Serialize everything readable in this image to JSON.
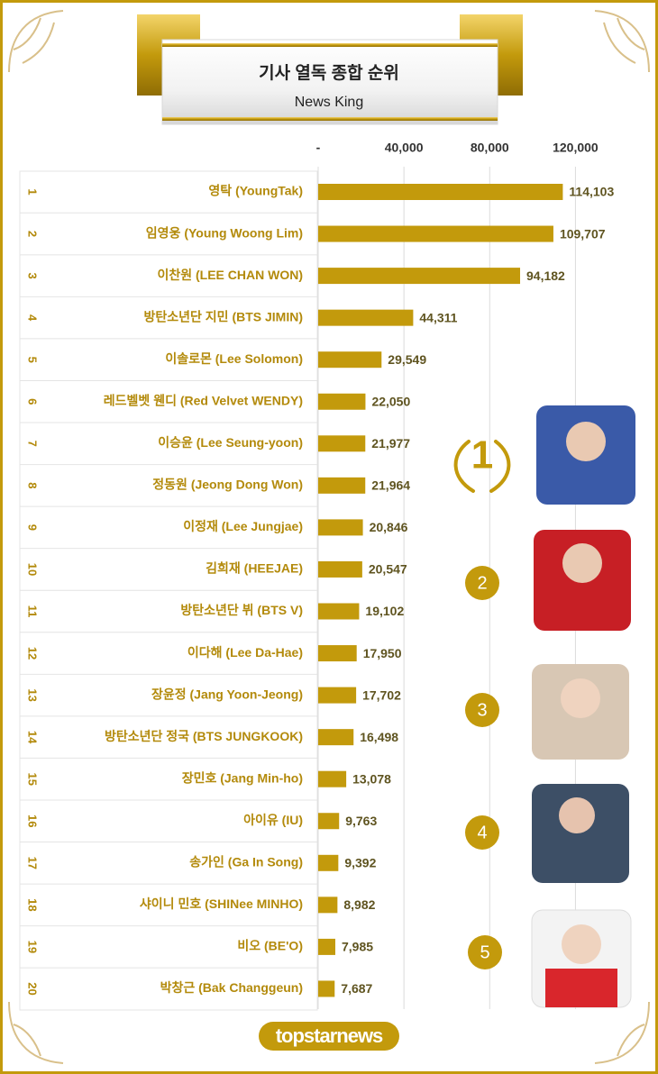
{
  "chart_data": {
    "type": "bar",
    "orientation": "horizontal",
    "title": "기사 열독 종합 순위",
    "subtitle": "News King",
    "ranks": [
      "1",
      "2",
      "3",
      "4",
      "5",
      "6",
      "7",
      "8",
      "9",
      "10",
      "11",
      "12",
      "13",
      "14",
      "15",
      "16",
      "17",
      "18",
      "19",
      "20"
    ],
    "categories": [
      "영탁 (YoungTak)",
      "임영웅 (Young Woong Lim)",
      "이찬원 (LEE CHAN WON)",
      "방탄소년단 지민 (BTS JIMIN)",
      "이솔로몬 (Lee Solomon)",
      "레드벨벳 웬디 (Red Velvet WENDY)",
      "이승윤 (Lee Seung-yoon)",
      "정동원 (Jeong Dong Won)",
      "이정재 (Lee Jungjae)",
      "김희재 (HEEJAE)",
      "방탄소년단 뷔 (BTS V)",
      "이다해 (Lee Da-Hae)",
      "장윤정 (Jang Yoon-Jeong)",
      "방탄소년단 정국 (BTS JUNGKOOK)",
      "장민호 (Jang Min-ho)",
      "아이유 (IU)",
      "송가인 (Ga In Song)",
      "샤이니 민호 (SHINee MINHO)",
      "비오 (BE'O)",
      "박창근 (Bak Changgeun)"
    ],
    "values": [
      114103,
      109707,
      94182,
      44311,
      29549,
      22050,
      21977,
      21964,
      20846,
      20547,
      19102,
      17950,
      17702,
      16498,
      13078,
      9763,
      9392,
      8982,
      7985,
      7687
    ],
    "value_labels": [
      "114,103",
      "109,707",
      "94,182",
      "44,311",
      "29,549",
      "22,050",
      "21,977",
      "21,964",
      "20,846",
      "20,547",
      "19,102",
      "17,950",
      "17,702",
      "16,498",
      "13,078",
      "9,763",
      "9,392",
      "8,982",
      "7,985",
      "7,687"
    ],
    "color": "#c39a0c",
    "xlim": [
      0,
      140000
    ],
    "xticks": [
      {
        "value": 0,
        "label": "-"
      },
      {
        "value": 40000,
        "label": "40,000"
      },
      {
        "value": 80000,
        "label": "80,000"
      },
      {
        "value": 120000,
        "label": "120,000"
      }
    ],
    "grid": true
  },
  "highlights": {
    "badges": [
      "1",
      "2",
      "3",
      "4",
      "5"
    ]
  },
  "footer": {
    "logo": "topstarnews"
  }
}
